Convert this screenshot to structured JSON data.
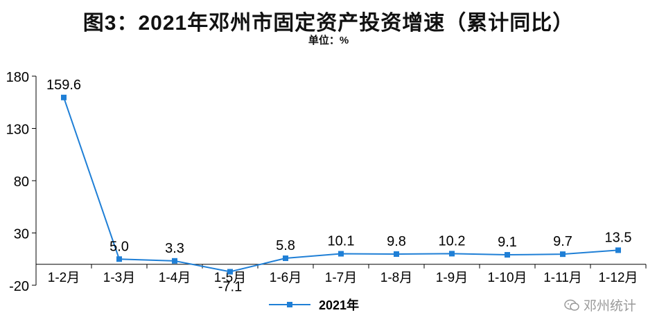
{
  "title": "图3：2021年邓州市固定资产投资增速（累计同比）",
  "unit_label": "单位：%",
  "watermark": "邓州统计",
  "colors": {
    "series": "#1f7fd6",
    "axis": "#000000"
  },
  "chart_data": {
    "type": "line",
    "categories": [
      "1-2月",
      "1-3月",
      "1-4月",
      "1-5月",
      "1-6月",
      "1-7月",
      "1-8月",
      "1-9月",
      "1-10月",
      "1-11月",
      "1-12月"
    ],
    "series": [
      {
        "name": "2021年",
        "values": [
          159.6,
          5.0,
          3.3,
          -7.1,
          5.8,
          10.1,
          9.8,
          10.2,
          9.1,
          9.7,
          13.5
        ]
      }
    ],
    "data_labels": [
      "159.6",
      "5.0",
      "3.3",
      "-7.1",
      "5.8",
      "10.1",
      "9.8",
      "10.2",
      "9.1",
      "9.7",
      "13.5"
    ],
    "y_ticks": [
      -20,
      30,
      80,
      130,
      180
    ],
    "ylim": [
      -20,
      180
    ],
    "grid": false,
    "legend_position": "bottom",
    "marker": "square"
  }
}
